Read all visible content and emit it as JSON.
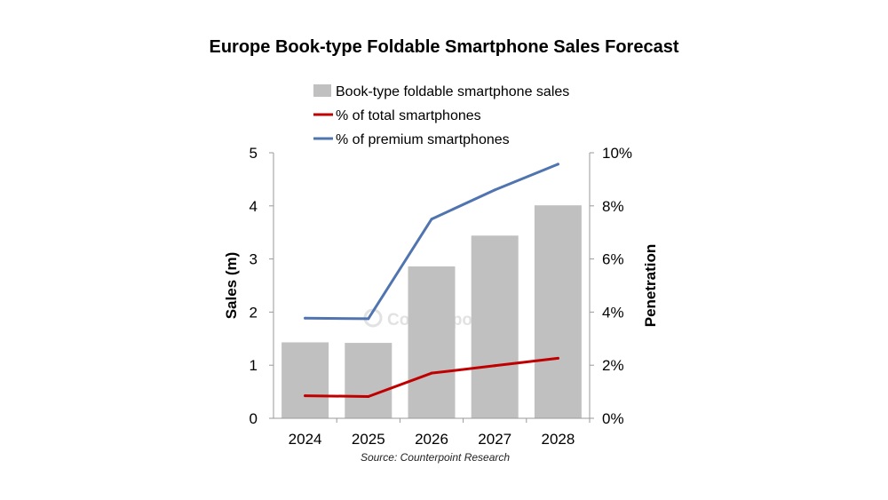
{
  "chart_data": {
    "type": "bar",
    "title": "Europe Book-type Foldable Smartphone Sales Forecast",
    "source": "Source: Counterpoint Research",
    "watermark": "Counterpoint",
    "categories": [
      "2024",
      "2025",
      "2026",
      "2027",
      "2028"
    ],
    "ylabel": "Sales (m)",
    "y2label": "Penetration",
    "ylim": [
      0,
      5
    ],
    "y2lim": [
      0,
      10
    ],
    "yticks": [
      "0",
      "1",
      "2",
      "3",
      "4",
      "5"
    ],
    "y2ticks": [
      "0%",
      "2%",
      "4%",
      "6%",
      "8%",
      "10%"
    ],
    "legend_position": "top-center",
    "grid": false,
    "series": [
      {
        "name": "Book-type foldable smartphone sales",
        "type": "bar",
        "axis": "left",
        "color": "#c0c0c0",
        "values": [
          1.43,
          1.42,
          2.86,
          3.44,
          4.01
        ]
      },
      {
        "name": "% of total smartphones",
        "type": "line",
        "axis": "right",
        "color": "#c00000",
        "values": [
          0.85,
          0.82,
          1.7,
          1.98,
          2.26
        ]
      },
      {
        "name": "% of premium smartphones",
        "type": "line",
        "axis": "right",
        "color": "#4f74b0",
        "values": [
          3.77,
          3.75,
          7.5,
          8.6,
          9.57
        ]
      }
    ]
  }
}
